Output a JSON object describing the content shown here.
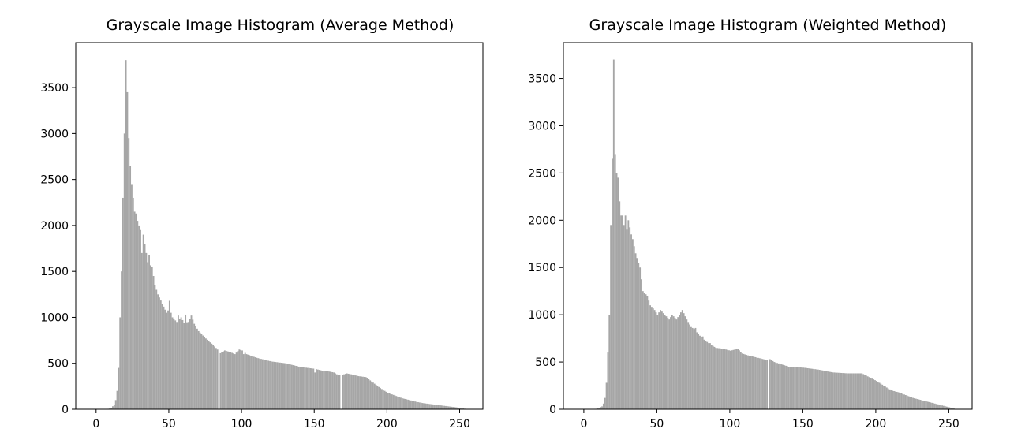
{
  "chart_data": [
    {
      "type": "bar",
      "title": "Grayscale Image Histogram (Average Method)",
      "xlabel": "",
      "ylabel": "",
      "xlim": [
        -14,
        266
      ],
      "ylim": [
        0,
        3990
      ],
      "xticks": [
        0,
        50,
        100,
        150,
        200,
        250
      ],
      "yticks": [
        0,
        500,
        1000,
        1500,
        2000,
        2500,
        3000,
        3500
      ],
      "grid": false,
      "bar_color": "#a6a6a6",
      "anchors": [
        [
          0,
          0
        ],
        [
          8,
          5
        ],
        [
          10,
          15
        ],
        [
          12,
          50
        ],
        [
          13,
          100
        ],
        [
          14,
          200
        ],
        [
          15,
          450
        ],
        [
          16,
          1000
        ],
        [
          17,
          1500
        ],
        [
          18,
          2300
        ],
        [
          19,
          3000
        ],
        [
          20,
          3800
        ],
        [
          21,
          3450
        ],
        [
          22,
          2950
        ],
        [
          23,
          2650
        ],
        [
          24,
          2450
        ],
        [
          25,
          2300
        ],
        [
          26,
          2150
        ],
        [
          27,
          2130
        ],
        [
          28,
          2050
        ],
        [
          30,
          1950
        ],
        [
          32,
          1900
        ],
        [
          33,
          1800
        ],
        [
          35,
          1600
        ],
        [
          38,
          1550
        ],
        [
          40,
          1350
        ],
        [
          42,
          1250
        ],
        [
          45,
          1150
        ],
        [
          48,
          1050
        ],
        [
          50,
          1100
        ],
        [
          52,
          1000
        ],
        [
          55,
          950
        ],
        [
          58,
          1000
        ],
        [
          60,
          940
        ],
        [
          63,
          950
        ],
        [
          65,
          1020
        ],
        [
          67,
          930
        ],
        [
          70,
          850
        ],
        [
          75,
          770
        ],
        [
          80,
          700
        ],
        [
          83,
          650
        ],
        [
          85,
          610
        ],
        [
          88,
          640
        ],
        [
          92,
          620
        ],
        [
          95,
          600
        ],
        [
          98,
          650
        ],
        [
          100,
          640
        ],
        [
          103,
          600
        ],
        [
          110,
          560
        ],
        [
          120,
          520
        ],
        [
          130,
          500
        ],
        [
          140,
          460
        ],
        [
          145,
          450
        ],
        [
          150,
          440
        ],
        [
          155,
          420
        ],
        [
          160,
          410
        ],
        [
          163,
          400
        ],
        [
          165,
          380
        ],
        [
          168,
          370
        ],
        [
          172,
          390
        ],
        [
          175,
          380
        ],
        [
          180,
          360
        ],
        [
          185,
          350
        ],
        [
          190,
          290
        ],
        [
          195,
          230
        ],
        [
          200,
          180
        ],
        [
          205,
          150
        ],
        [
          210,
          120
        ],
        [
          215,
          100
        ],
        [
          220,
          80
        ],
        [
          225,
          65
        ],
        [
          230,
          55
        ],
        [
          235,
          45
        ],
        [
          240,
          35
        ],
        [
          245,
          25
        ],
        [
          250,
          15
        ],
        [
          255,
          0
        ]
      ],
      "dips": [
        [
          84,
          0
        ],
        [
          168,
          0
        ],
        [
          50,
          1180
        ],
        [
          56,
          1020
        ],
        [
          61,
          1030
        ],
        [
          31,
          1700
        ],
        [
          36,
          1680
        ],
        [
          101,
          600
        ],
        [
          150,
          400
        ]
      ]
    },
    {
      "type": "bar",
      "title": "Grayscale Image Histogram (Weighted Method)",
      "xlabel": "",
      "ylabel": "",
      "xlim": [
        -14,
        266
      ],
      "ylim": [
        0,
        3880
      ],
      "xticks": [
        0,
        50,
        100,
        150,
        200,
        250
      ],
      "yticks": [
        0,
        500,
        1000,
        1500,
        2000,
        2500,
        3000,
        3500
      ],
      "grid": false,
      "bar_color": "#a6a6a6",
      "anchors": [
        [
          0,
          0
        ],
        [
          8,
          5
        ],
        [
          10,
          15
        ],
        [
          12,
          30
        ],
        [
          13,
          60
        ],
        [
          14,
          120
        ],
        [
          15,
          280
        ],
        [
          16,
          600
        ],
        [
          17,
          1000
        ],
        [
          18,
          1950
        ],
        [
          19,
          2650
        ],
        [
          20,
          3700
        ],
        [
          21,
          2700
        ],
        [
          22,
          2500
        ],
        [
          23,
          2450
        ],
        [
          24,
          2200
        ],
        [
          25,
          2050
        ],
        [
          26,
          2050
        ],
        [
          27,
          1950
        ],
        [
          28,
          2050
        ],
        [
          29,
          1900
        ],
        [
          30,
          2000
        ],
        [
          32,
          1850
        ],
        [
          33,
          1800
        ],
        [
          35,
          1650
        ],
        [
          38,
          1500
        ],
        [
          40,
          1250
        ],
        [
          43,
          1200
        ],
        [
          45,
          1100
        ],
        [
          48,
          1050
        ],
        [
          50,
          1000
        ],
        [
          52,
          1050
        ],
        [
          55,
          1000
        ],
        [
          58,
          950
        ],
        [
          60,
          1000
        ],
        [
          63,
          950
        ],
        [
          65,
          1000
        ],
        [
          67,
          1050
        ],
        [
          70,
          950
        ],
        [
          73,
          870
        ],
        [
          75,
          850
        ],
        [
          80,
          760
        ],
        [
          85,
          700
        ],
        [
          90,
          650
        ],
        [
          95,
          640
        ],
        [
          100,
          620
        ],
        [
          105,
          640
        ],
        [
          108,
          590
        ],
        [
          112,
          570
        ],
        [
          120,
          540
        ],
        [
          125,
          520
        ],
        [
          126,
          500
        ],
        [
          127,
          530
        ],
        [
          130,
          500
        ],
        [
          140,
          450
        ],
        [
          150,
          440
        ],
        [
          160,
          420
        ],
        [
          170,
          390
        ],
        [
          180,
          380
        ],
        [
          190,
          380
        ],
        [
          195,
          340
        ],
        [
          200,
          300
        ],
        [
          205,
          250
        ],
        [
          210,
          200
        ],
        [
          215,
          180
        ],
        [
          220,
          150
        ],
        [
          225,
          120
        ],
        [
          230,
          100
        ],
        [
          235,
          80
        ],
        [
          240,
          60
        ],
        [
          245,
          40
        ],
        [
          250,
          20
        ],
        [
          255,
          0
        ]
      ],
      "dips": [
        [
          126,
          0
        ],
        [
          76,
          860
        ],
        [
          81,
          770
        ],
        [
          86,
          700
        ]
      ]
    }
  ]
}
